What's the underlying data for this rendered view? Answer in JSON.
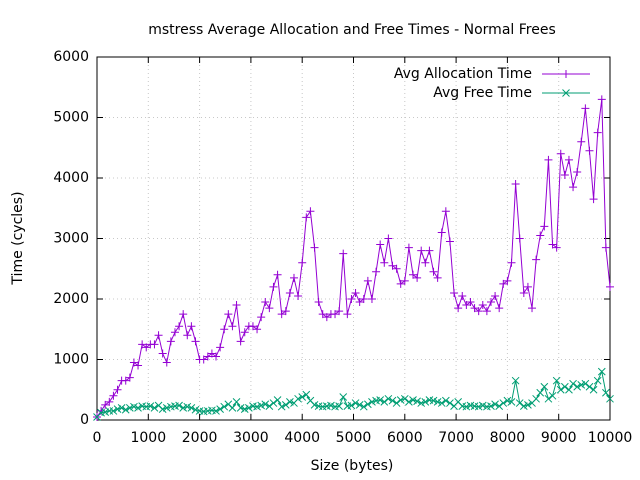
{
  "chart_data": {
    "type": "line",
    "title": "mstress Average Allocation and Free Times - Normal Frees",
    "x_label": "Size (bytes)",
    "y_label": "Time (cycles)",
    "xlim": [
      0,
      10000
    ],
    "ylim": [
      0,
      6000
    ],
    "xticks": [
      0,
      1000,
      2000,
      3000,
      4000,
      5000,
      6000,
      7000,
      8000,
      9000,
      10000
    ],
    "yticks": [
      0,
      1000,
      2000,
      3000,
      4000,
      5000,
      6000
    ],
    "grid": true,
    "legend": "top-right",
    "x": [
      0,
      80,
      160,
      240,
      320,
      400,
      480,
      560,
      640,
      720,
      800,
      880,
      960,
      1040,
      1120,
      1200,
      1280,
      1360,
      1440,
      1520,
      1600,
      1680,
      1760,
      1840,
      1920,
      2000,
      2080,
      2160,
      2240,
      2320,
      2400,
      2480,
      2560,
      2640,
      2720,
      2800,
      2880,
      2960,
      3040,
      3120,
      3200,
      3280,
      3360,
      3440,
      3520,
      3600,
      3680,
      3760,
      3840,
      3920,
      4000,
      4080,
      4160,
      4240,
      4320,
      4400,
      4480,
      4560,
      4640,
      4720,
      4800,
      4880,
      4960,
      5040,
      5120,
      5200,
      5280,
      5360,
      5440,
      5520,
      5600,
      5680,
      5760,
      5840,
      5920,
      6000,
      6080,
      6160,
      6240,
      6320,
      6400,
      6480,
      6560,
      6640,
      6720,
      6800,
      6880,
      6960,
      7040,
      7120,
      7200,
      7280,
      7360,
      7440,
      7520,
      7600,
      7680,
      7760,
      7840,
      7920,
      8000,
      8080,
      8160,
      8240,
      8320,
      8400,
      8480,
      8560,
      8640,
      8720,
      8800,
      8880,
      8960,
      9040,
      9120,
      9200,
      9280,
      9360,
      9440,
      9520,
      9600,
      9680,
      9760,
      9840,
      9920,
      10000
    ],
    "series": [
      {
        "name": "Avg Allocation Time",
        "color": "#9400d3",
        "marker": "plus",
        "values": [
          50,
          150,
          250,
          300,
          400,
          500,
          650,
          650,
          700,
          950,
          900,
          1250,
          1200,
          1250,
          1250,
          1400,
          1100,
          950,
          1300,
          1450,
          1550,
          1750,
          1400,
          1550,
          1300,
          1000,
          1000,
          1050,
          1100,
          1050,
          1200,
          1500,
          1750,
          1550,
          1900,
          1300,
          1450,
          1550,
          1550,
          1500,
          1700,
          1950,
          1850,
          2200,
          2400,
          1750,
          1800,
          2100,
          2350,
          2050,
          2600,
          3350,
          3450,
          2850,
          1950,
          1750,
          1700,
          1750,
          1750,
          1800,
          2750,
          1750,
          2000,
          2100,
          1950,
          2000,
          2300,
          2000,
          2450,
          2900,
          2600,
          3000,
          2550,
          2500,
          2250,
          2300,
          2850,
          2400,
          2350,
          2800,
          2600,
          2800,
          2450,
          2350,
          3100,
          3450,
          2950,
          2100,
          1850,
          2050,
          1900,
          1950,
          1850,
          1800,
          1900,
          1800,
          1950,
          2050,
          1850,
          2250,
          2300,
          2600,
          3900,
          3000,
          2100,
          2200,
          1850,
          2650,
          3050,
          3200,
          4300,
          2900,
          2850,
          4400,
          4050,
          4300,
          3850,
          4100,
          4600,
          5150,
          4450,
          3650,
          4750,
          5300,
          2850,
          2200
        ]
      },
      {
        "name": "Avg Free Time",
        "color": "#009e73",
        "marker": "cross",
        "values": [
          50,
          120,
          130,
          150,
          150,
          180,
          200,
          170,
          200,
          220,
          200,
          230,
          220,
          230,
          200,
          240,
          180,
          200,
          220,
          230,
          240,
          200,
          220,
          200,
          170,
          150,
          140,
          150,
          160,
          150,
          180,
          220,
          260,
          200,
          300,
          200,
          180,
          200,
          230,
          220,
          240,
          260,
          230,
          280,
          330,
          220,
          250,
          300,
          280,
          350,
          380,
          420,
          320,
          250,
          230,
          220,
          230,
          240,
          220,
          230,
          380,
          230,
          240,
          280,
          250,
          220,
          260,
          300,
          320,
          330,
          300,
          350,
          320,
          280,
          330,
          350,
          300,
          330,
          310,
          280,
          300,
          330,
          320,
          300,
          280,
          320,
          280,
          230,
          300,
          230,
          220,
          240,
          230,
          220,
          240,
          220,
          230,
          260,
          230,
          280,
          320,
          300,
          650,
          280,
          230,
          250,
          280,
          350,
          450,
          550,
          350,
          400,
          650,
          500,
          550,
          500,
          600,
          550,
          580,
          600,
          550,
          500,
          650,
          800,
          450,
          350
        ]
      }
    ]
  }
}
